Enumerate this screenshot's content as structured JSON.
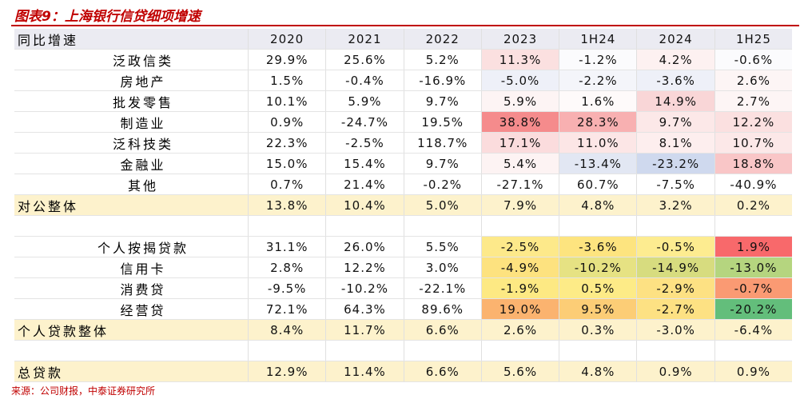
{
  "title": "图表9：上海银行信贷细项增速",
  "header": [
    "同比增速",
    "2020",
    "2021",
    "2022",
    "2023",
    "1H24",
    "2024",
    "1H25"
  ],
  "sections": [
    {
      "items": [
        {
          "label": "泛政信类",
          "cells": [
            "29.9%",
            "25.6%",
            "5.2%",
            "11.3%",
            "-1.2%",
            "4.2%",
            "-0.6%"
          ],
          "fills": [
            null,
            null,
            null,
            "#fbe0e0",
            "#fbfbfd",
            "#fdf1f1",
            "#fbfbfd"
          ]
        },
        {
          "label": "房地产",
          "cells": [
            "1.5%",
            "-0.4%",
            "-16.9%",
            "-5.0%",
            "-2.2%",
            "-3.6%",
            "2.6%"
          ],
          "fills": [
            null,
            null,
            null,
            "#eef0f8",
            "#f4f5fa",
            "#eef0f8",
            "#fdf5f5"
          ]
        },
        {
          "label": "批发零售",
          "cells": [
            "10.1%",
            "5.9%",
            "9.7%",
            "5.9%",
            "1.6%",
            "14.9%",
            "2.7%"
          ],
          "fills": [
            null,
            null,
            null,
            "#fdf4f4",
            "#fefafa",
            "#f9d6d7",
            "#fdf5f5"
          ]
        },
        {
          "label": "制造业",
          "cells": [
            "0.9%",
            "-24.7%",
            "19.5%",
            "38.8%",
            "28.3%",
            "9.7%",
            "12.2%"
          ],
          "fills": [
            null,
            null,
            null,
            "#f58b8c",
            "#f8b0b1",
            "#fce8e8",
            "#fbe0e0"
          ]
        },
        {
          "label": "泛科技类",
          "cells": [
            "22.3%",
            "-2.5%",
            "118.7%",
            "17.1%",
            "11.0%",
            "8.1%",
            "10.7%"
          ],
          "fills": [
            null,
            null,
            null,
            "#fbdcdd",
            "#fce6e6",
            "#fdeeee",
            "#fce8e8"
          ]
        },
        {
          "label": "金融业",
          "cells": [
            "15.0%",
            "15.4%",
            "9.7%",
            "5.4%",
            "-13.4%",
            "-23.2%",
            "18.8%"
          ],
          "fills": [
            null,
            null,
            null,
            "#fdf3f3",
            "#e2e7f3",
            "#cfd9ee",
            "#f9c6c7"
          ]
        },
        {
          "label": "其他",
          "cells": [
            "0.7%",
            "21.4%",
            "-0.2%",
            "-27.1%",
            "60.7%",
            "-7.5%",
            "-40.9%"
          ],
          "fills": [
            null,
            null,
            null,
            null,
            null,
            null,
            null
          ]
        }
      ],
      "total": {
        "label": "对公整体",
        "cells": [
          "13.8%",
          "10.4%",
          "5.0%",
          "7.9%",
          "4.8%",
          "3.2%",
          "0.2%"
        ]
      }
    },
    {
      "items": [
        {
          "label": "个人按揭贷款",
          "cells": [
            "31.1%",
            "26.0%",
            "5.5%",
            "-2.5%",
            "-3.6%",
            "-0.5%",
            "1.9%"
          ],
          "fills": [
            null,
            null,
            null,
            "#fde98a",
            "#fde47f",
            "#fdec90",
            "#f8696b"
          ]
        },
        {
          "label": "信用卡",
          "cells": [
            "2.8%",
            "12.2%",
            "3.0%",
            "-4.9%",
            "-10.2%",
            "-14.9%",
            "-13.0%"
          ],
          "fills": [
            null,
            null,
            null,
            "#fde27f",
            "#e6e283",
            "#d7dc7f",
            "#b5d57f"
          ]
        },
        {
          "label": "消费贷",
          "cells": [
            "-9.5%",
            "-10.2%",
            "-22.1%",
            "-1.9%",
            "0.5%",
            "-2.9%",
            "-0.7%"
          ],
          "fills": [
            null,
            null,
            null,
            "#fde983",
            "#fdeb87",
            "#fde183",
            "#fa9a73"
          ]
        },
        {
          "label": "经营贷",
          "cells": [
            "72.1%",
            "64.3%",
            "89.6%",
            "19.0%",
            "9.5%",
            "-2.7%",
            "-20.2%"
          ],
          "fills": [
            null,
            null,
            null,
            "#fbb36f",
            "#fccd76",
            "#fde183",
            "#63be7b"
          ]
        }
      ],
      "total": {
        "label": "个人贷款整体",
        "cells": [
          "8.4%",
          "11.7%",
          "6.6%",
          "2.6%",
          "0.3%",
          "-3.0%",
          "-6.4%"
        ]
      }
    },
    {
      "items": [],
      "total": {
        "label": "总贷款",
        "cells": [
          "12.9%",
          "11.4%",
          "6.6%",
          "5.6%",
          "4.8%",
          "0.9%",
          "0.9%"
        ]
      }
    }
  ],
  "source": "来源：公司财报，中泰证券研究所"
}
